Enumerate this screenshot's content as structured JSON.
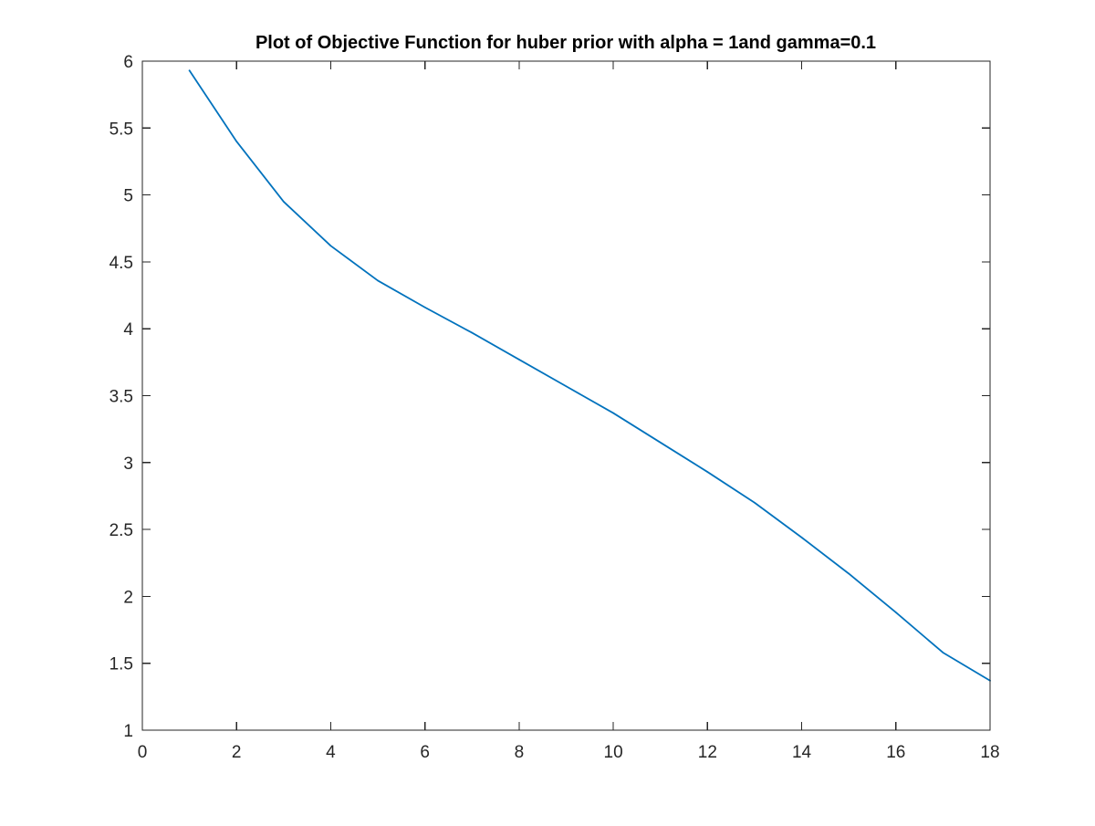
{
  "chart_data": {
    "type": "line",
    "title": "Plot of Objective Function for huber prior with alpha = 1and gamma=0.1",
    "xlabel": "",
    "ylabel": "",
    "xlim": [
      0,
      18
    ],
    "ylim": [
      1,
      6
    ],
    "x_ticks": [
      0,
      2,
      4,
      6,
      8,
      10,
      12,
      14,
      16,
      18
    ],
    "x_tick_labels": [
      "0",
      "2",
      "4",
      "6",
      "8",
      "10",
      "12",
      "14",
      "16",
      "18"
    ],
    "y_ticks": [
      1,
      1.5,
      2,
      2.5,
      3,
      3.5,
      4,
      4.5,
      5,
      5.5,
      6
    ],
    "y_tick_labels": [
      "1",
      "1.5",
      "2",
      "2.5",
      "3",
      "3.5",
      "4",
      "4.5",
      "5",
      "5.5",
      "6"
    ],
    "grid": false,
    "box": true,
    "series": [
      {
        "color": "#0072BD",
        "x": [
          1,
          2,
          3,
          4,
          5,
          6,
          7,
          8,
          9,
          10,
          11,
          12,
          13,
          14,
          15,
          16,
          17,
          18
        ],
        "y": [
          5.93,
          5.4,
          4.95,
          4.62,
          4.36,
          4.16,
          3.97,
          3.77,
          3.57,
          3.37,
          3.15,
          2.93,
          2.7,
          2.44,
          2.17,
          1.88,
          1.58,
          1.37
        ]
      }
    ]
  }
}
